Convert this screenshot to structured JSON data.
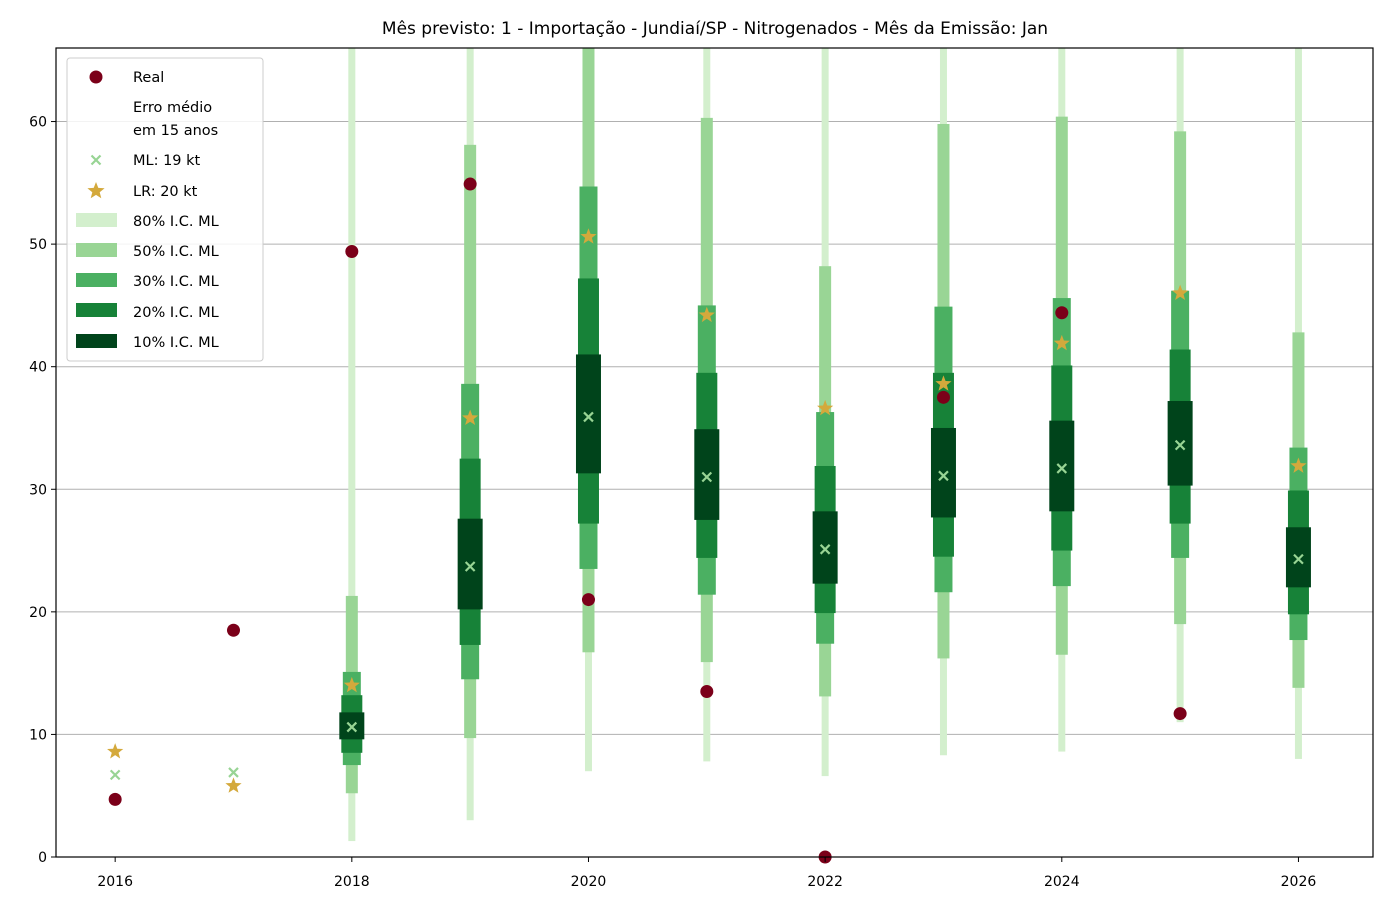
{
  "chart_data": {
    "type": "interval-forecast",
    "title": "Mês previsto: 1 - Importação - Jundiaí/SP - Nitrogenados - Mês da Emissão: Jan",
    "xlabel": "",
    "ylabel": "",
    "xlim": [
      2015.5,
      2026.63
    ],
    "ylim": [
      0,
      66
    ],
    "xticks": [
      2016,
      2018,
      2020,
      2022,
      2024,
      2026
    ],
    "yticks": [
      0,
      10,
      20,
      30,
      40,
      50,
      60
    ],
    "grid": "horizontal",
    "legend_position": "top-left",
    "colors": {
      "real": "#7b0019",
      "ml": "#98d494",
      "lr": "#d4a93c",
      "ci80": "#d3efcd",
      "ci50": "#99d595",
      "ci30": "#4bb062",
      "ci20": "#178238",
      "ci10": "#00441b"
    },
    "legend": {
      "real": "Real",
      "erro_line1": "Erro médio",
      "erro_line2": "em 15 anos",
      "ml": "ML: 19 kt",
      "lr": "LR: 20 kt",
      "ci80": "80% I.C. ML",
      "ci50": "50% I.C. ML",
      "ci30": "30% I.C. ML",
      "ci20": "20% I.C. ML",
      "ci10": "10% I.C. ML"
    },
    "real": [
      {
        "x": 2016,
        "y": 4.7
      },
      {
        "x": 2017,
        "y": 18.5
      },
      {
        "x": 2018,
        "y": 49.4
      },
      {
        "x": 2019,
        "y": 54.9
      },
      {
        "x": 2020,
        "y": 21.0
      },
      {
        "x": 2021,
        "y": 13.5
      },
      {
        "x": 2022,
        "y": 0.0
      },
      {
        "x": 2023,
        "y": 37.5
      },
      {
        "x": 2024,
        "y": 44.4
      },
      {
        "x": 2025,
        "y": 11.7
      }
    ],
    "ml": [
      {
        "x": 2016,
        "y": 6.7
      },
      {
        "x": 2017,
        "y": 6.9
      },
      {
        "x": 2018,
        "y": 10.6
      },
      {
        "x": 2019,
        "y": 23.7
      },
      {
        "x": 2020,
        "y": 35.9
      },
      {
        "x": 2021,
        "y": 31.0
      },
      {
        "x": 2022,
        "y": 25.1
      },
      {
        "x": 2023,
        "y": 31.1
      },
      {
        "x": 2024,
        "y": 31.7
      },
      {
        "x": 2025,
        "y": 33.6
      },
      {
        "x": 2026,
        "y": 24.3
      }
    ],
    "lr": [
      {
        "x": 2016,
        "y": 8.6
      },
      {
        "x": 2017,
        "y": 5.8
      },
      {
        "x": 2018,
        "y": 14.0
      },
      {
        "x": 2019,
        "y": 35.8
      },
      {
        "x": 2020,
        "y": 50.6
      },
      {
        "x": 2021,
        "y": 44.2
      },
      {
        "x": 2022,
        "y": 36.6
      },
      {
        "x": 2023,
        "y": 38.6
      },
      {
        "x": 2024,
        "y": 41.9
      },
      {
        "x": 2025,
        "y": 46.0
      },
      {
        "x": 2026,
        "y": 31.9
      }
    ],
    "intervals": [
      {
        "x": 2018,
        "ci80": [
          1.3,
          66
        ],
        "ci50": [
          5.2,
          21.3
        ],
        "ci30": [
          7.5,
          15.1
        ],
        "ci20": [
          8.5,
          13.2
        ],
        "ci10": [
          9.6,
          11.8
        ]
      },
      {
        "x": 2019,
        "ci80": [
          3.0,
          66
        ],
        "ci50": [
          9.7,
          58.1
        ],
        "ci30": [
          14.5,
          38.6
        ],
        "ci20": [
          17.3,
          32.5
        ],
        "ci10": [
          20.2,
          27.6
        ]
      },
      {
        "x": 2020,
        "ci80": [
          7.0,
          66
        ],
        "ci50": [
          16.7,
          66
        ],
        "ci30": [
          23.5,
          54.7
        ],
        "ci20": [
          27.2,
          47.2
        ],
        "ci10": [
          31.3,
          41.0
        ]
      },
      {
        "x": 2021,
        "ci80": [
          7.8,
          66
        ],
        "ci50": [
          15.9,
          60.3
        ],
        "ci30": [
          21.4,
          45.0
        ],
        "ci20": [
          24.4,
          39.5
        ],
        "ci10": [
          27.5,
          34.9
        ]
      },
      {
        "x": 2022,
        "ci80": [
          6.6,
          66
        ],
        "ci50": [
          13.1,
          48.2
        ],
        "ci30": [
          17.4,
          36.3
        ],
        "ci20": [
          19.9,
          31.9
        ],
        "ci10": [
          22.3,
          28.2
        ]
      },
      {
        "x": 2023,
        "ci80": [
          8.3,
          66
        ],
        "ci50": [
          16.2,
          59.8
        ],
        "ci30": [
          21.6,
          44.9
        ],
        "ci20": [
          24.5,
          39.5
        ],
        "ci10": [
          27.7,
          35.0
        ]
      },
      {
        "x": 2024,
        "ci80": [
          8.6,
          66
        ],
        "ci50": [
          16.5,
          60.4
        ],
        "ci30": [
          22.1,
          45.6
        ],
        "ci20": [
          25.0,
          40.1
        ],
        "ci10": [
          28.2,
          35.6
        ]
      },
      {
        "x": 2025,
        "ci80": [
          11.0,
          66
        ],
        "ci50": [
          19.0,
          59.2
        ],
        "ci30": [
          24.4,
          46.2
        ],
        "ci20": [
          27.2,
          41.4
        ],
        "ci10": [
          30.3,
          37.2
        ]
      },
      {
        "x": 2026,
        "ci80": [
          8.0,
          66
        ],
        "ci50": [
          13.8,
          42.8
        ],
        "ci30": [
          17.7,
          33.4
        ],
        "ci20": [
          19.8,
          29.9
        ],
        "ci10": [
          22.0,
          26.9
        ]
      }
    ]
  }
}
